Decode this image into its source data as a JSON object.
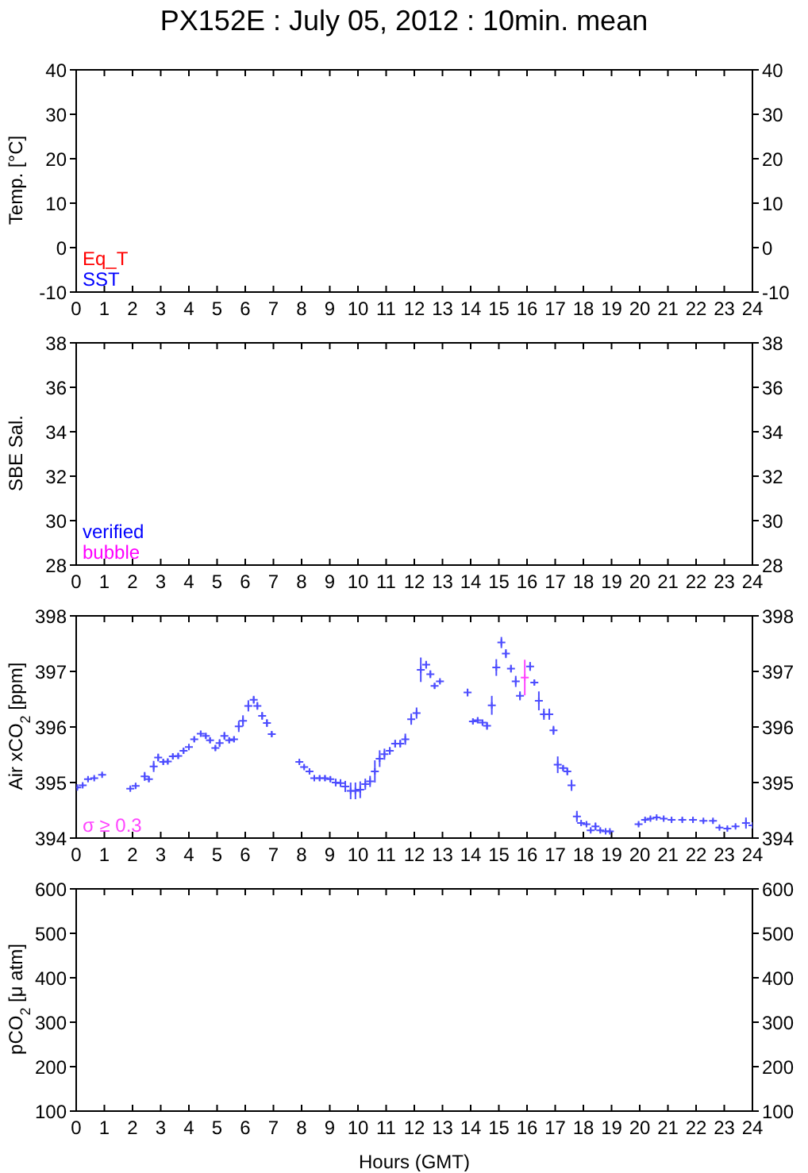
{
  "chart_data": [
    {
      "type": "scatter",
      "title": "PX152E : July 05, 2012 : 10min. mean",
      "ylabel": "Temp. [°C]",
      "xlim": [
        0,
        24
      ],
      "xticks": [
        0,
        1,
        2,
        3,
        4,
        5,
        6,
        7,
        8,
        9,
        10,
        11,
        12,
        13,
        14,
        15,
        16,
        17,
        18,
        19,
        20,
        21,
        22,
        23,
        24
      ],
      "ylim": [
        -10,
        40
      ],
      "yticks": [
        -10,
        0,
        10,
        20,
        30,
        40
      ],
      "y2lim": [
        -10,
        40
      ],
      "y2ticks": [
        -10,
        0,
        10,
        20,
        30,
        40
      ],
      "marker": "cross",
      "series": [
        {
          "name": "Eq_T",
          "color": "#ff0000",
          "x": [
            null
          ],
          "values": [
            null
          ]
        },
        {
          "name": "SST",
          "color": "#0000ff",
          "x": [
            null
          ],
          "values": [
            null
          ]
        }
      ]
    },
    {
      "type": "scatter",
      "ylabel": "SBE Sal.",
      "xlim": [
        0,
        24
      ],
      "xticks": [
        0,
        1,
        2,
        3,
        4,
        5,
        6,
        7,
        8,
        9,
        10,
        11,
        12,
        13,
        14,
        15,
        16,
        17,
        18,
        19,
        20,
        21,
        22,
        23,
        24
      ],
      "ylim": [
        28,
        38
      ],
      "yticks": [
        28,
        30,
        32,
        34,
        36,
        38
      ],
      "y2lim": [
        28,
        38
      ],
      "y2ticks": [
        28,
        30,
        32,
        34,
        36,
        38
      ],
      "marker": "cross",
      "series": [
        {
          "name": "verified",
          "color": "#0000ff",
          "x": [
            null
          ],
          "values": [
            null
          ]
        },
        {
          "name": "bubble",
          "color": "#ff00ff",
          "x": [
            null
          ],
          "values": [
            null
          ]
        }
      ]
    },
    {
      "type": "scatter",
      "ylabel": "Air xCO$_{2}$ [ppm]",
      "xlim": [
        0,
        24
      ],
      "xticks": [
        0,
        1,
        2,
        3,
        4,
        5,
        6,
        7,
        8,
        9,
        10,
        11,
        12,
        13,
        14,
        15,
        16,
        17,
        18,
        19,
        20,
        21,
        22,
        23,
        24
      ],
      "ylim": [
        394,
        398
      ],
      "yticks": [
        394,
        395,
        396,
        397,
        398
      ],
      "y2lim": [
        394,
        398
      ],
      "y2ticks": [
        394,
        395,
        396,
        397,
        398
      ],
      "marker": "cross",
      "series": [
        {
          "color": "#4d4dff",
          "x": [
            0.04,
            0.23,
            0.42,
            0.64,
            0.92,
            1.92,
            2.11,
            2.43,
            2.58,
            2.75,
            2.91,
            3.09,
            3.25,
            3.43,
            3.62,
            3.81,
            4.0,
            4.19,
            4.42,
            4.6,
            4.75,
            4.94,
            5.09,
            5.26,
            5.43,
            5.6,
            5.77,
            5.92,
            6.11,
            6.3,
            6.43,
            6.6,
            6.77,
            6.94,
            7.92,
            8.09,
            8.28,
            8.45,
            8.64,
            8.83,
            9.02,
            9.21,
            9.38,
            9.55,
            9.74,
            9.91,
            10.08,
            10.26,
            10.43,
            10.6,
            10.77,
            10.94,
            11.13,
            11.32,
            11.5,
            11.68,
            11.89,
            12.08,
            12.23,
            12.42,
            12.57,
            12.72,
            12.91,
            13.89,
            14.08,
            14.25,
            14.42,
            14.58,
            14.75,
            14.91,
            15.09,
            15.25,
            15.43,
            15.6,
            15.75,
            16.11,
            16.26,
            16.42,
            16.6,
            16.79,
            16.94,
            17.09,
            17.28,
            17.43,
            17.58,
            17.77,
            17.92,
            18.11,
            18.26,
            18.43,
            18.6,
            18.79,
            18.94,
            19.96,
            20.19,
            20.38,
            20.6,
            20.85,
            21.13,
            21.51,
            21.89,
            22.26,
            22.6,
            22.83,
            23.11,
            23.4,
            23.77,
            24.0
          ],
          "values": [
            394.91,
            394.95,
            395.06,
            395.08,
            395.14,
            394.89,
            394.94,
            395.11,
            395.06,
            395.29,
            395.45,
            395.37,
            395.38,
            395.47,
            395.48,
            395.57,
            395.64,
            395.78,
            395.88,
            395.84,
            395.76,
            395.62,
            395.71,
            395.84,
            395.76,
            395.78,
            396.01,
            396.11,
            396.38,
            396.49,
            396.38,
            396.2,
            396.07,
            395.87,
            395.37,
            395.28,
            395.2,
            395.08,
            395.08,
            395.08,
            395.06,
            395.0,
            394.99,
            394.93,
            394.85,
            394.85,
            394.87,
            394.97,
            395.02,
            395.2,
            395.43,
            395.51,
            395.57,
            395.7,
            395.7,
            395.78,
            396.14,
            396.25,
            397.03,
            397.12,
            396.95,
            396.74,
            396.82,
            396.62,
            396.1,
            396.12,
            396.08,
            396.02,
            396.39,
            397.07,
            397.52,
            397.32,
            397.05,
            396.82,
            396.56,
            397.09,
            396.8,
            396.47,
            396.23,
            396.23,
            395.94,
            395.32,
            395.26,
            395.2,
            394.95,
            394.39,
            394.27,
            394.25,
            394.14,
            394.21,
            394.14,
            394.12,
            394.12,
            394.25,
            394.33,
            394.35,
            394.37,
            394.35,
            394.33,
            394.33,
            394.33,
            394.31,
            394.31,
            394.19,
            394.17,
            394.21,
            394.27,
            394.23
          ],
          "errors": [
            0.03,
            0.03,
            0.03,
            0.03,
            0.03,
            0.03,
            0.05,
            0.08,
            0.05,
            0.1,
            0.07,
            0.05,
            0.05,
            0.05,
            0.05,
            0.05,
            0.05,
            0.05,
            0.05,
            0.05,
            0.05,
            0.05,
            0.07,
            0.07,
            0.05,
            0.05,
            0.1,
            0.1,
            0.1,
            0.07,
            0.07,
            0.07,
            0.07,
            0.05,
            0.03,
            0.03,
            0.03,
            0.05,
            0.05,
            0.05,
            0.05,
            0.07,
            0.07,
            0.1,
            0.15,
            0.15,
            0.15,
            0.1,
            0.1,
            0.2,
            0.15,
            0.1,
            0.07,
            0.07,
            0.07,
            0.1,
            0.1,
            0.1,
            0.22,
            0.07,
            0.07,
            0.05,
            0.03,
            0.07,
            0.05,
            0.05,
            0.05,
            0.07,
            0.17,
            0.15,
            0.1,
            0.08,
            0.07,
            0.1,
            0.08,
            0.08,
            0.05,
            0.17,
            0.1,
            0.1,
            0.08,
            0.15,
            0.05,
            0.07,
            0.1,
            0.1,
            0.03,
            0.03,
            0.03,
            0.07,
            0.03,
            0.03,
            0.03,
            0.03,
            0.03,
            0.03,
            0.03,
            0.03,
            0.03,
            0.03,
            0.03,
            0.03,
            0.03,
            0.03,
            0.03,
            0.03,
            0.1,
            0.03
          ]
        },
        {
          "name": "σ ≥ 0.3",
          "color": "#ff44ff",
          "x": [
            15.92
          ],
          "values": [
            396.89
          ],
          "errors": [
            0.32
          ]
        }
      ]
    },
    {
      "type": "scatter",
      "ylabel": "pCO$_{2}$ [μ atm]",
      "xlabel": "Hours (GMT)",
      "xlim": [
        0,
        24
      ],
      "xticks": [
        0,
        1,
        2,
        3,
        4,
        5,
        6,
        7,
        8,
        9,
        10,
        11,
        12,
        13,
        14,
        15,
        16,
        17,
        18,
        19,
        20,
        21,
        22,
        23,
        24
      ],
      "ylim": [
        100,
        600
      ],
      "yticks": [
        100,
        200,
        300,
        400,
        500,
        600
      ],
      "y2lim": [
        100,
        600
      ],
      "y2ticks": [
        100,
        200,
        300,
        400,
        500,
        600
      ],
      "marker": "cross"
    }
  ]
}
